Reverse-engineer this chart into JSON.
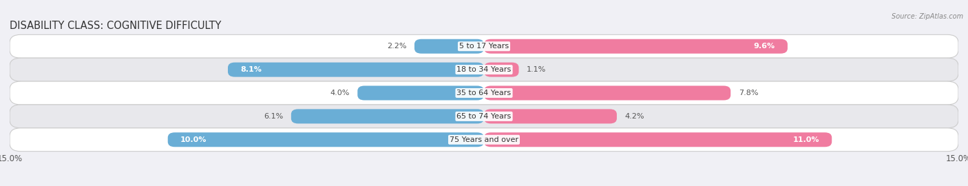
{
  "title": "DISABILITY CLASS: COGNITIVE DIFFICULTY",
  "source": "Source: ZipAtlas.com",
  "categories": [
    "5 to 17 Years",
    "18 to 34 Years",
    "35 to 64 Years",
    "65 to 74 Years",
    "75 Years and over"
  ],
  "male_values": [
    2.2,
    8.1,
    4.0,
    6.1,
    10.0
  ],
  "female_values": [
    9.6,
    1.1,
    7.8,
    4.2,
    11.0
  ],
  "male_color": "#6aaed6",
  "female_color": "#f07ca0",
  "male_light_color": "#aed4ec",
  "female_light_color": "#f9b8cf",
  "row_bg_colors": [
    "#ffffff",
    "#e8e8ec"
  ],
  "xlim": 15.0,
  "bar_height": 0.62,
  "title_fontsize": 10.5,
  "label_fontsize": 8.0,
  "tick_fontsize": 8.5,
  "background_color": "#f0f0f5"
}
